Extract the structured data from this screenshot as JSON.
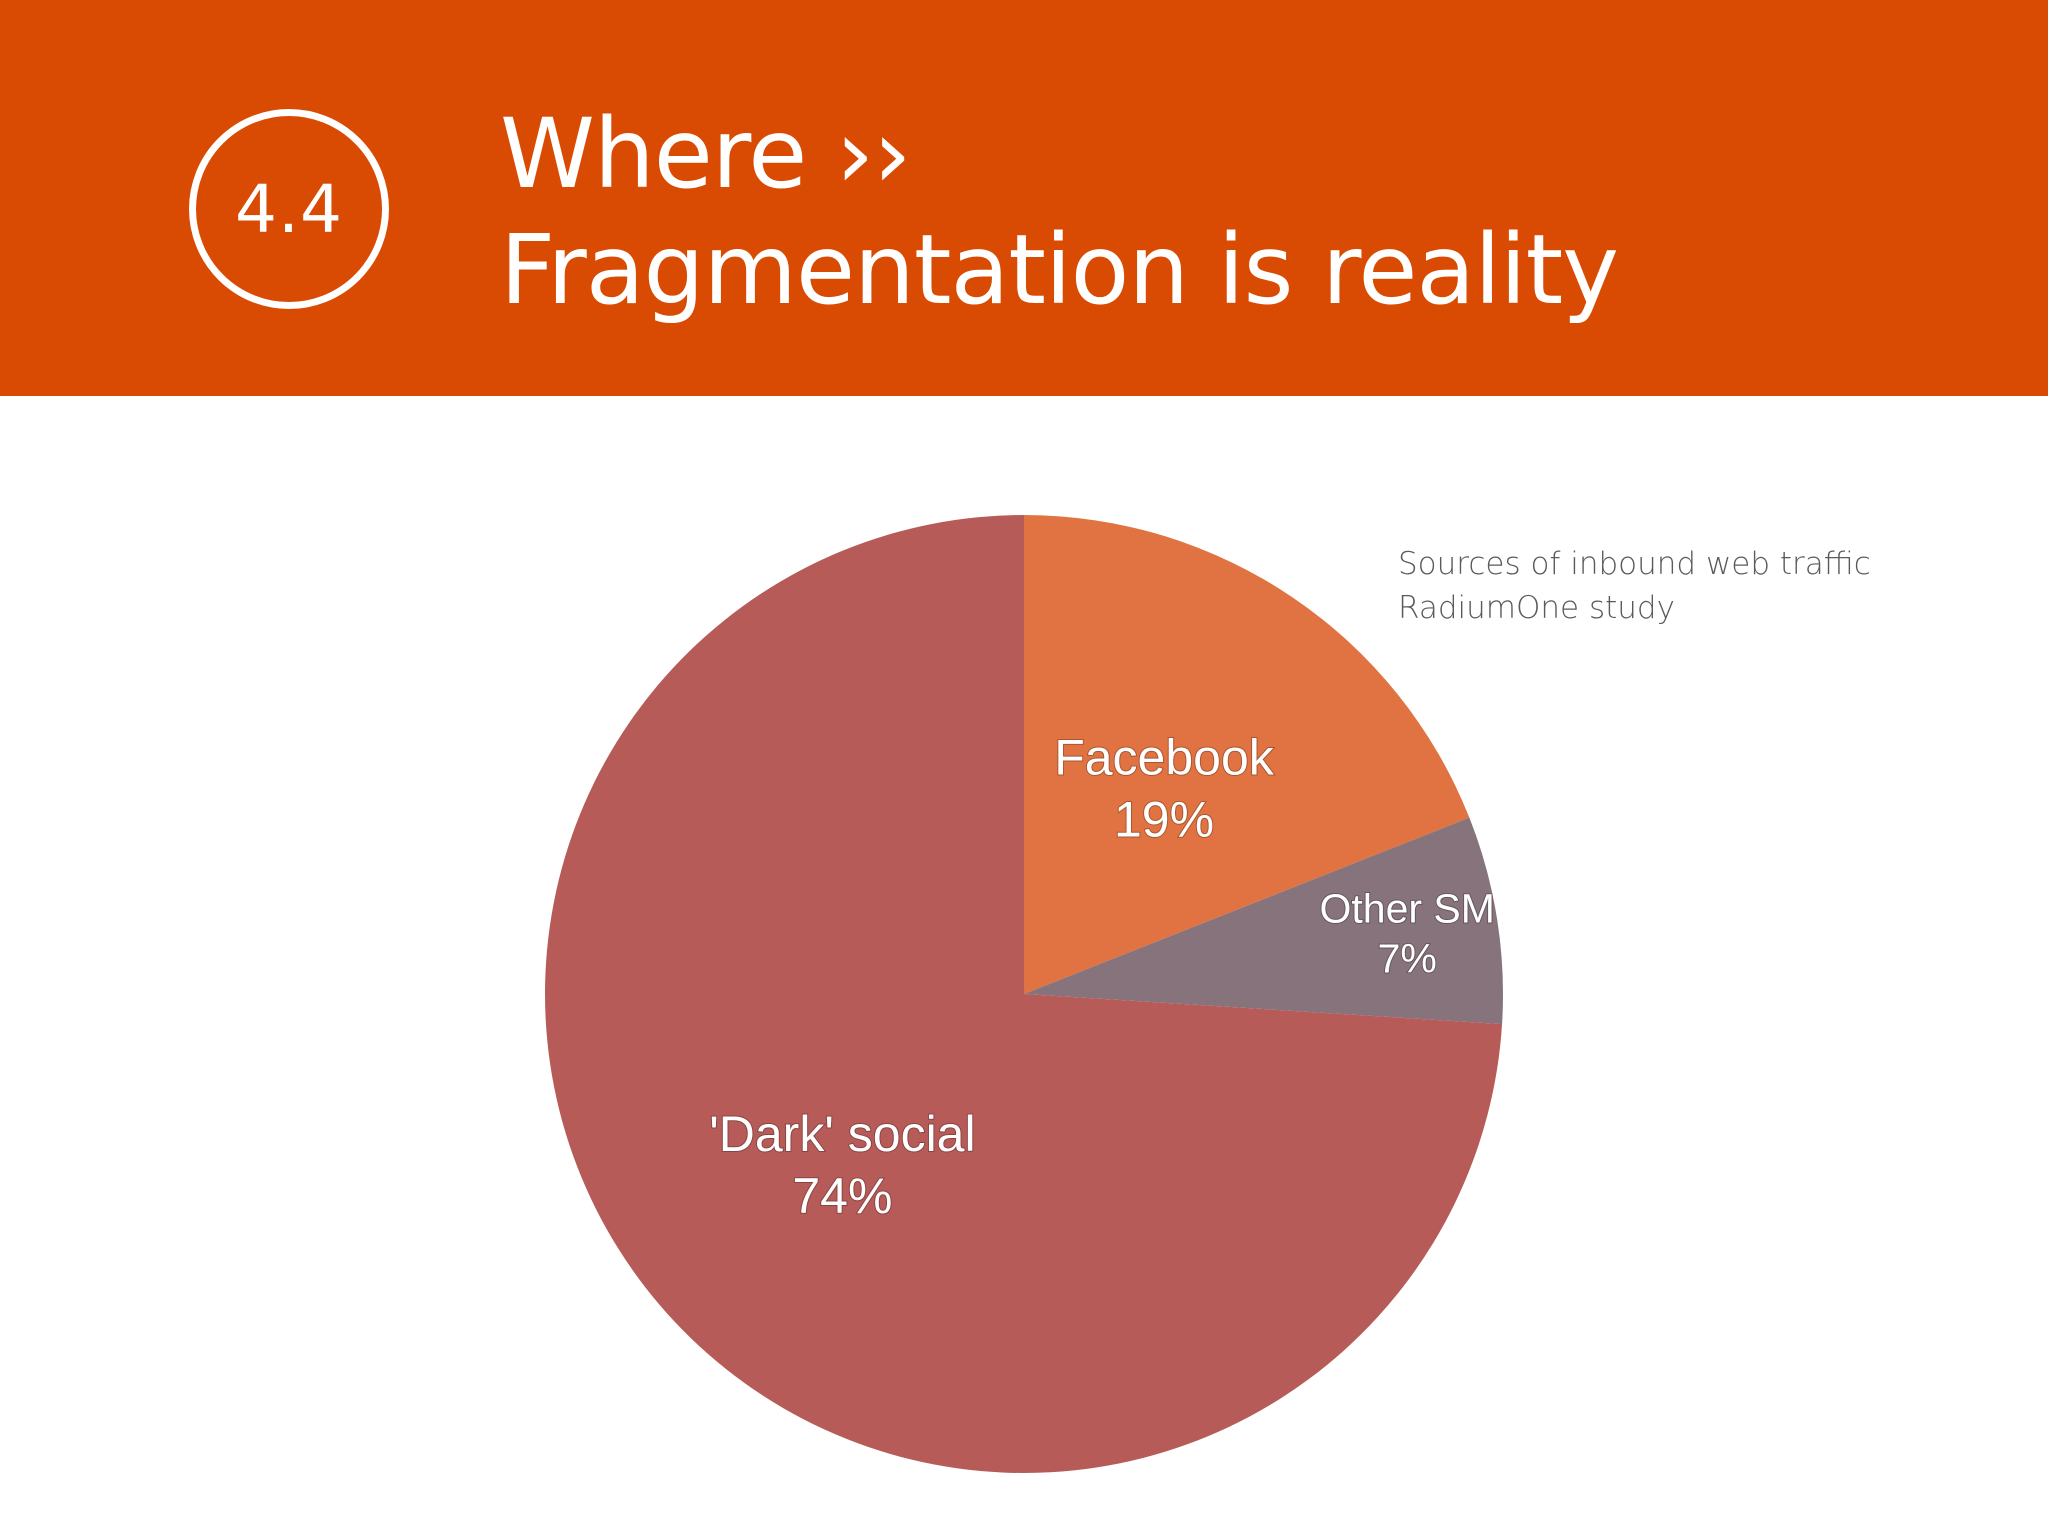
{
  "header": {
    "section_number": "4.4",
    "title_line1": "Where ››",
    "title_line2": "Fragmentation is reality",
    "background_color": "#d94b02"
  },
  "chart_caption": {
    "line1": "Sources of inbound web traffic",
    "line2": "RadiumOne study"
  },
  "chart_data": {
    "type": "pie",
    "slices": [
      {
        "label": "Facebook",
        "value": 19,
        "value_label": "19%",
        "color": "#e07341"
      },
      {
        "label": "Other SM",
        "value": 7,
        "value_label": "7%",
        "color": "#87737b"
      },
      {
        "label": "'Dark' social",
        "value": 74,
        "value_label": "74%",
        "color": "#b75b58"
      }
    ],
    "start": "top",
    "direction": "clockwise"
  }
}
